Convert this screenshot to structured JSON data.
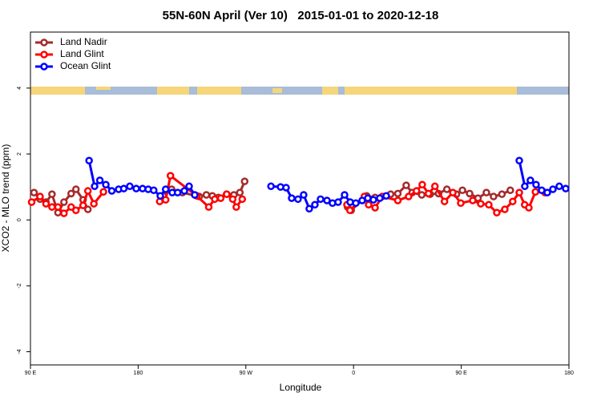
{
  "chart_data": {
    "type": "line",
    "title": "55N-60N April (Ver 10)   2015-01-01 to 2020-12-18",
    "x_label": "Longitude",
    "y_label": "XCO2 - MLO trend (ppm)",
    "xlim": [
      90,
      540
    ],
    "xticks": [
      {
        "value": 90,
        "label": "90 E"
      },
      180,
      {
        "value": 270,
        "label": "90 W"
      },
      {
        "value": 360,
        "label": "0"
      },
      {
        "value": 450,
        "label": "90 E"
      },
      {
        "value": 540,
        "label": "180"
      }
    ],
    "ylim": [
      -4.4,
      5.7
    ],
    "yticks": [
      -4,
      -2,
      0,
      2,
      4
    ],
    "legend": "top-left",
    "series": [
      {
        "name": "Land Nadir",
        "color": "#a52a2a",
        "x": [
          93,
          98,
          103,
          108,
          113,
          118,
          124,
          128,
          134,
          138,
          null,
          201,
          208,
          217,
          231,
          237,
          242,
          247,
          254,
          260,
          265,
          269,
          null,
          355,
          358,
          371,
          378,
          391,
          397,
          404,
          409,
          417,
          424,
          431,
          438,
          446,
          451,
          457,
          464,
          471,
          477,
          484,
          491
        ],
        "values": [
          0.83,
          0.63,
          0.54,
          0.78,
          0.22,
          0.54,
          0.8,
          0.93,
          0.61,
          0.32,
          null,
          0.73,
          0.93,
          0.83,
          0.71,
          0.76,
          0.73,
          0.68,
          0.78,
          0.76,
          0.83,
          1.17,
          null,
          0.39,
          0.29,
          0.73,
          0.68,
          0.78,
          0.8,
          1.05,
          0.83,
          0.76,
          0.78,
          0.8,
          0.93,
          0.78,
          0.9,
          0.8,
          0.66,
          0.83,
          0.71,
          0.78,
          0.9
        ]
      },
      {
        "name": "Land Glint",
        "color": "#ff0000",
        "x": [
          91,
          98,
          103,
          108,
          113,
          118,
          124,
          128,
          134,
          138,
          143,
          151,
          null,
          198,
          203,
          207,
          229,
          239,
          244,
          249,
          254,
          259,
          262,
          267,
          null,
          354.5,
          357,
          369,
          372.6,
          378,
          384,
          397,
          406,
          412.6,
          417.4,
          422.6,
          428,
          436,
          443,
          449.6,
          459.6,
          466.3,
          473,
          479.7,
          486.4,
          493,
          498.5,
          503,
          506.5,
          512,
          520
        ],
        "values": [
          0.54,
          0.71,
          0.49,
          0.39,
          0.39,
          0.2,
          0.39,
          0.29,
          0.44,
          0.88,
          0.49,
          0.85,
          null,
          0.56,
          0.61,
          1.34,
          0.73,
          0.39,
          0.63,
          0.66,
          0.78,
          0.63,
          0.39,
          0.63,
          null,
          0.46,
          0.29,
          0.71,
          0.46,
          0.37,
          0.71,
          0.59,
          0.71,
          0.88,
          1.07,
          0.8,
          1.02,
          0.56,
          0.83,
          0.51,
          0.59,
          0.49,
          0.46,
          0.22,
          0.32,
          0.56,
          0.83,
          0.46,
          0.37,
          0.85,
          0.83
        ]
      },
      {
        "name": "Ocean Glint",
        "color": "#0000ff",
        "x": [
          139,
          143.6,
          148,
          153,
          158,
          163.7,
          168,
          173,
          178.4,
          183.7,
          188.4,
          193,
          198.5,
          203,
          208.5,
          213,
          218.6,
          222.6,
          227.3,
          null,
          291,
          299,
          303.6,
          308.3,
          313.6,
          318.3,
          323,
          327.7,
          332.4,
          337.8,
          342.4,
          347.1,
          352.5,
          357.2,
          361.9,
          367.2,
          371.9,
          376.6,
          381.9,
          387.3,
          null,
          498.5,
          503.1,
          507.8,
          512.5,
          517.2,
          521.9,
          526.6,
          531.9,
          537.3
        ],
        "values": [
          1.8,
          1.02,
          1.2,
          1.07,
          0.88,
          0.93,
          0.95,
          1.02,
          0.95,
          0.95,
          0.93,
          0.9,
          0.73,
          0.93,
          0.83,
          0.83,
          0.88,
          1.02,
          0.76,
          null,
          1.02,
          1.0,
          0.98,
          0.66,
          0.63,
          0.76,
          0.34,
          0.46,
          0.63,
          0.59,
          0.51,
          0.54,
          0.76,
          0.54,
          0.51,
          0.59,
          0.66,
          0.61,
          0.66,
          0.73,
          null,
          1.8,
          1.02,
          1.2,
          1.07,
          0.9,
          0.83,
          0.93,
          1.02,
          0.95
        ]
      }
    ]
  }
}
